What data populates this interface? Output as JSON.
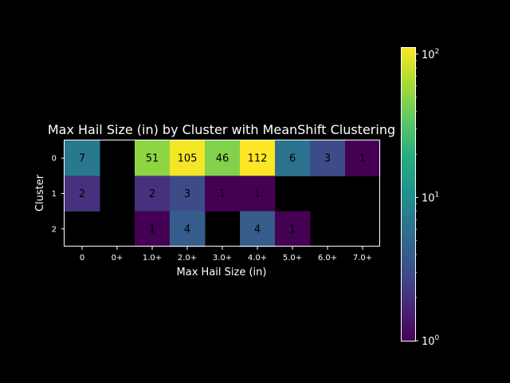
{
  "chart_data": {
    "type": "heatmap",
    "title": "Max Hail Size (in) by Cluster with MeanShift Clustering",
    "xlabel": "Max Hail Size (in)",
    "ylabel": "Cluster",
    "x_categories": [
      "0",
      "0+",
      "1.0+",
      "2.0+",
      "3.0+",
      "4.0+",
      "5.0+",
      "6.0+",
      "7.0+"
    ],
    "y_categories": [
      "0",
      "1",
      "2"
    ],
    "values": [
      [
        7,
        null,
        51,
        105,
        46,
        112,
        6,
        3,
        1
      ],
      [
        2,
        null,
        2,
        3,
        1,
        1,
        null,
        null,
        null
      ],
      [
        null,
        null,
        1,
        4,
        null,
        4,
        1,
        null,
        null
      ]
    ],
    "colorbar": {
      "scale": "log",
      "min": 1,
      "max": 112,
      "tick_labels": [
        {
          "value": 1,
          "base": "10",
          "exp": "0"
        },
        {
          "value": 10,
          "base": "10",
          "exp": "1"
        },
        {
          "value": 100,
          "base": "10",
          "exp": "2"
        }
      ],
      "colormap": "viridis"
    },
    "background_color": "#000000",
    "text_color": "#ffffff"
  }
}
